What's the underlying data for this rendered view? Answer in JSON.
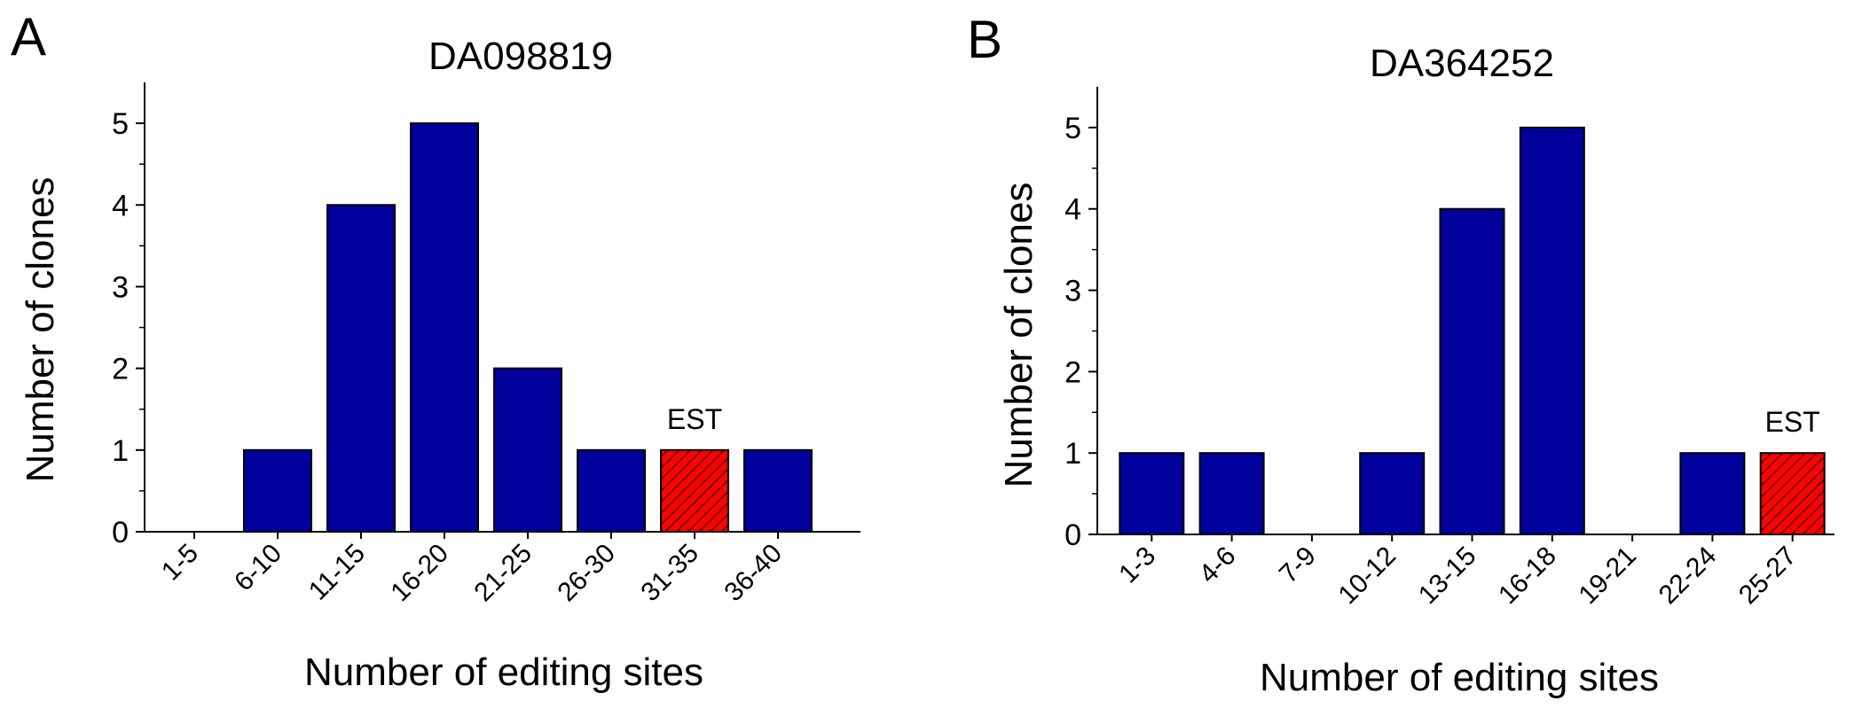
{
  "chart_data": [
    {
      "panel": "A",
      "type": "bar",
      "title": "DA098819",
      "xlabel": "Number of editing sites",
      "ylabel": "Number of clones",
      "categories": [
        "1-5",
        "6-10",
        "11-15",
        "16-20",
        "21-25",
        "26-30",
        "31-35",
        "36-40"
      ],
      "values": [
        0,
        1,
        4,
        5,
        2,
        1,
        1,
        1
      ],
      "highlight_index": 6,
      "annotation": "EST",
      "ylim": [
        0,
        5.5
      ],
      "yticks": [
        0,
        1,
        2,
        3,
        4,
        5
      ],
      "colors": {
        "bar": "#00009c",
        "highlight": "#ff0000",
        "outline": "#000000"
      },
      "grid": false
    },
    {
      "panel": "B",
      "type": "bar",
      "title": "DA364252",
      "xlabel": "Number of editing sites",
      "ylabel": "Number of clones",
      "categories": [
        "1-3",
        "4-6",
        "7-9",
        "10-12",
        "13-15",
        "16-18",
        "19-21",
        "22-24",
        "25-27"
      ],
      "values": [
        1,
        1,
        0,
        1,
        4,
        5,
        0,
        1,
        1
      ],
      "highlight_index": 8,
      "annotation": "EST",
      "ylim": [
        0,
        5.5
      ],
      "yticks": [
        0,
        1,
        2,
        3,
        4,
        5
      ],
      "colors": {
        "bar": "#00009c",
        "highlight": "#ff0000",
        "outline": "#000000"
      },
      "grid": false
    }
  ]
}
